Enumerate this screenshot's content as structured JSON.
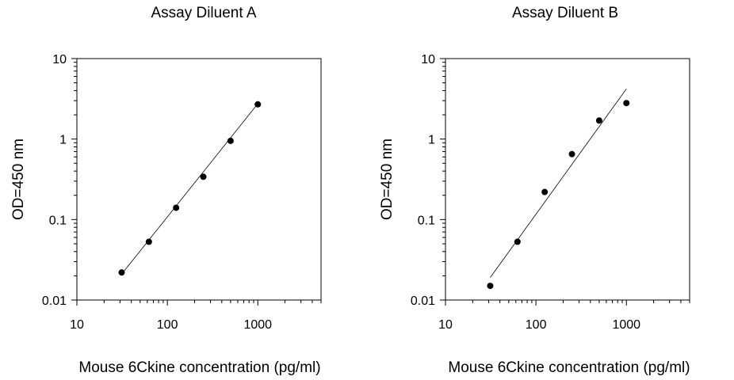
{
  "chart_data": [
    {
      "type": "scatter",
      "title": "Assay Diluent A",
      "xlabel": "Mouse 6Ckine concentration (pg/ml)",
      "ylabel": "OD=450 nm",
      "xscale": "log",
      "yscale": "log",
      "xlim": [
        10,
        5000
      ],
      "ylim": [
        0.01,
        10
      ],
      "xticks": [
        "10",
        "100",
        "1000"
      ],
      "yticks": [
        "0.01",
        "0.1",
        "1",
        "10"
      ],
      "grid": false,
      "legend": "none",
      "series": [
        {
          "x": [
            31.25,
            62.5,
            125,
            250,
            500,
            1000
          ],
          "y": [
            0.022,
            0.053,
            0.14,
            0.34,
            0.95,
            2.7
          ]
        }
      ],
      "fit_line": {
        "x": [
          31.25,
          1000
        ],
        "y": [
          0.021,
          2.75
        ]
      }
    },
    {
      "type": "scatter",
      "title": "Assay Diluent B",
      "xlabel": "Mouse 6Ckine concentration (pg/ml)",
      "ylabel": "OD=450 nm",
      "xscale": "log",
      "yscale": "log",
      "xlim": [
        10,
        5000
      ],
      "ylim": [
        0.01,
        10
      ],
      "xticks": [
        "10",
        "100",
        "1000"
      ],
      "yticks": [
        "0.01",
        "0.1",
        "1",
        "10"
      ],
      "grid": false,
      "legend": "none",
      "series": [
        {
          "x": [
            31.25,
            62.5,
            125,
            250,
            500,
            1000
          ],
          "y": [
            0.015,
            0.053,
            0.22,
            0.65,
            1.7,
            2.8
          ]
        }
      ],
      "fit_line": {
        "x": [
          31.25,
          1000
        ],
        "y": [
          0.019,
          4.2
        ]
      }
    }
  ]
}
